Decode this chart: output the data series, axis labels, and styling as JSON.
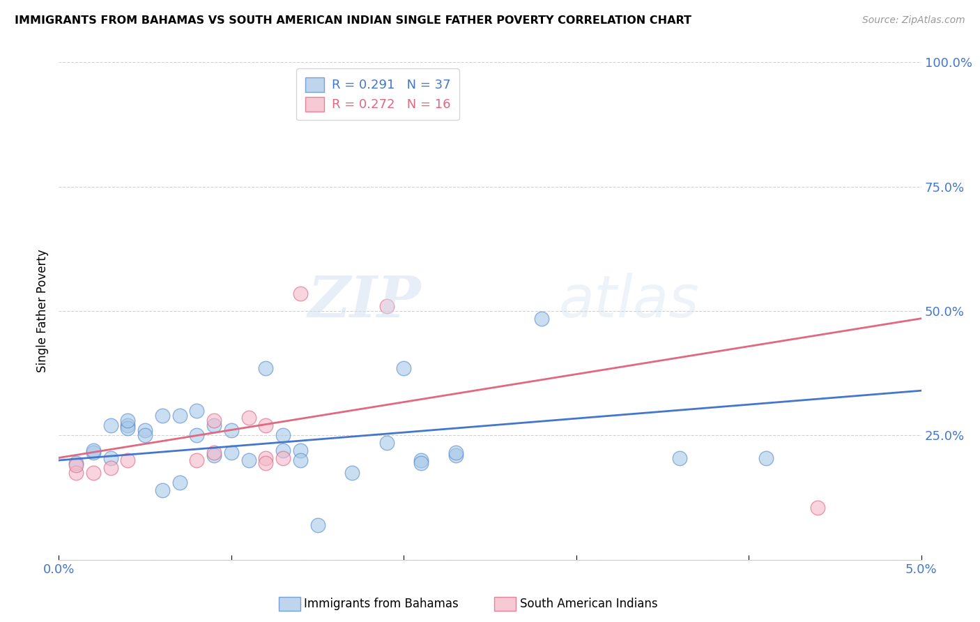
{
  "title": "IMMIGRANTS FROM BAHAMAS VS SOUTH AMERICAN INDIAN SINGLE FATHER POVERTY CORRELATION CHART",
  "source": "Source: ZipAtlas.com",
  "ylabel": "Single Father Poverty",
  "xlim": [
    0.0,
    0.05
  ],
  "ylim": [
    0.0,
    1.0
  ],
  "watermark_zip": "ZIP",
  "watermark_atlas": "atlas",
  "legend_blue_r": "0.291",
  "legend_blue_n": "37",
  "legend_pink_r": "0.272",
  "legend_pink_n": "16",
  "blue_fill": "#a8c8e8",
  "pink_fill": "#f4b8c8",
  "blue_edge": "#5588cc",
  "pink_edge": "#e06080",
  "line_blue_color": "#4477cc",
  "line_pink_color": "#e06880",
  "ytick_color": "#4477cc",
  "xtick_label_color": "#4477cc",
  "grid_color": "#cccccc",
  "blue_points": [
    [
      0.001,
      0.195
    ],
    [
      0.002,
      0.215
    ],
    [
      0.002,
      0.22
    ],
    [
      0.003,
      0.205
    ],
    [
      0.003,
      0.27
    ],
    [
      0.004,
      0.27
    ],
    [
      0.004,
      0.265
    ],
    [
      0.004,
      0.28
    ],
    [
      0.005,
      0.26
    ],
    [
      0.005,
      0.25
    ],
    [
      0.006,
      0.29
    ],
    [
      0.006,
      0.14
    ],
    [
      0.007,
      0.155
    ],
    [
      0.007,
      0.29
    ],
    [
      0.008,
      0.3
    ],
    [
      0.008,
      0.25
    ],
    [
      0.009,
      0.21
    ],
    [
      0.009,
      0.27
    ],
    [
      0.01,
      0.215
    ],
    [
      0.01,
      0.26
    ],
    [
      0.011,
      0.2
    ],
    [
      0.012,
      0.385
    ],
    [
      0.013,
      0.25
    ],
    [
      0.013,
      0.22
    ],
    [
      0.014,
      0.22
    ],
    [
      0.014,
      0.2
    ],
    [
      0.015,
      0.07
    ],
    [
      0.017,
      0.175
    ],
    [
      0.019,
      0.235
    ],
    [
      0.02,
      0.385
    ],
    [
      0.021,
      0.2
    ],
    [
      0.021,
      0.195
    ],
    [
      0.023,
      0.21
    ],
    [
      0.023,
      0.215
    ],
    [
      0.028,
      0.485
    ],
    [
      0.036,
      0.205
    ],
    [
      0.041,
      0.205
    ]
  ],
  "pink_points": [
    [
      0.001,
      0.175
    ],
    [
      0.001,
      0.19
    ],
    [
      0.002,
      0.175
    ],
    [
      0.003,
      0.185
    ],
    [
      0.004,
      0.2
    ],
    [
      0.008,
      0.2
    ],
    [
      0.009,
      0.215
    ],
    [
      0.009,
      0.28
    ],
    [
      0.011,
      0.285
    ],
    [
      0.012,
      0.27
    ],
    [
      0.012,
      0.205
    ],
    [
      0.012,
      0.195
    ],
    [
      0.013,
      0.205
    ],
    [
      0.014,
      0.535
    ],
    [
      0.019,
      0.51
    ],
    [
      0.044,
      0.105
    ]
  ],
  "blue_line_x": [
    0.0,
    0.05
  ],
  "blue_line_y": [
    0.2,
    0.34
  ],
  "pink_line_x": [
    0.0,
    0.05
  ],
  "pink_line_y": [
    0.205,
    0.485
  ],
  "legend_x_label_blue": "Immigrants from Bahamas",
  "legend_x_label_pink": "South American Indians"
}
